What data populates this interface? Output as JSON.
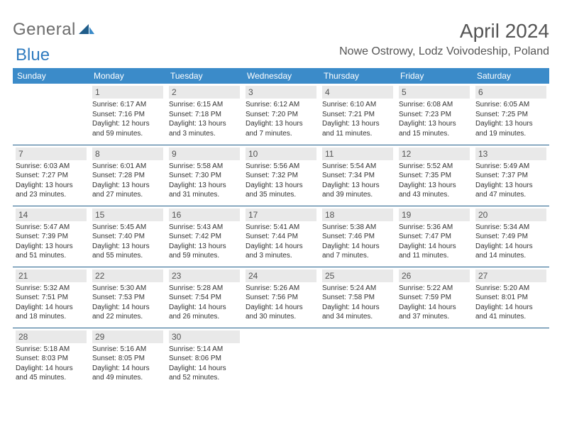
{
  "brand": {
    "part1": "General",
    "part2": "Blue"
  },
  "title": "April 2024",
  "location": "Nowe Ostrowy, Lodz Voivodeship, Poland",
  "colors": {
    "header_bg": "#3b8bc9",
    "header_text": "#ffffff",
    "divider": "#1f5d8a",
    "daynum_bg": "#e9e9e9",
    "text": "#333333",
    "brand_gray": "#6d6d6d",
    "brand_blue": "#2f7bbf"
  },
  "weekdays": [
    "Sunday",
    "Monday",
    "Tuesday",
    "Wednesday",
    "Thursday",
    "Friday",
    "Saturday"
  ],
  "weeks": [
    [
      {
        "n": "",
        "l1": "",
        "l2": "",
        "l3": "",
        "l4": ""
      },
      {
        "n": "1",
        "l1": "Sunrise: 6:17 AM",
        "l2": "Sunset: 7:16 PM",
        "l3": "Daylight: 12 hours",
        "l4": "and 59 minutes."
      },
      {
        "n": "2",
        "l1": "Sunrise: 6:15 AM",
        "l2": "Sunset: 7:18 PM",
        "l3": "Daylight: 13 hours",
        "l4": "and 3 minutes."
      },
      {
        "n": "3",
        "l1": "Sunrise: 6:12 AM",
        "l2": "Sunset: 7:20 PM",
        "l3": "Daylight: 13 hours",
        "l4": "and 7 minutes."
      },
      {
        "n": "4",
        "l1": "Sunrise: 6:10 AM",
        "l2": "Sunset: 7:21 PM",
        "l3": "Daylight: 13 hours",
        "l4": "and 11 minutes."
      },
      {
        "n": "5",
        "l1": "Sunrise: 6:08 AM",
        "l2": "Sunset: 7:23 PM",
        "l3": "Daylight: 13 hours",
        "l4": "and 15 minutes."
      },
      {
        "n": "6",
        "l1": "Sunrise: 6:05 AM",
        "l2": "Sunset: 7:25 PM",
        "l3": "Daylight: 13 hours",
        "l4": "and 19 minutes."
      }
    ],
    [
      {
        "n": "7",
        "l1": "Sunrise: 6:03 AM",
        "l2": "Sunset: 7:27 PM",
        "l3": "Daylight: 13 hours",
        "l4": "and 23 minutes."
      },
      {
        "n": "8",
        "l1": "Sunrise: 6:01 AM",
        "l2": "Sunset: 7:28 PM",
        "l3": "Daylight: 13 hours",
        "l4": "and 27 minutes."
      },
      {
        "n": "9",
        "l1": "Sunrise: 5:58 AM",
        "l2": "Sunset: 7:30 PM",
        "l3": "Daylight: 13 hours",
        "l4": "and 31 minutes."
      },
      {
        "n": "10",
        "l1": "Sunrise: 5:56 AM",
        "l2": "Sunset: 7:32 PM",
        "l3": "Daylight: 13 hours",
        "l4": "and 35 minutes."
      },
      {
        "n": "11",
        "l1": "Sunrise: 5:54 AM",
        "l2": "Sunset: 7:34 PM",
        "l3": "Daylight: 13 hours",
        "l4": "and 39 minutes."
      },
      {
        "n": "12",
        "l1": "Sunrise: 5:52 AM",
        "l2": "Sunset: 7:35 PM",
        "l3": "Daylight: 13 hours",
        "l4": "and 43 minutes."
      },
      {
        "n": "13",
        "l1": "Sunrise: 5:49 AM",
        "l2": "Sunset: 7:37 PM",
        "l3": "Daylight: 13 hours",
        "l4": "and 47 minutes."
      }
    ],
    [
      {
        "n": "14",
        "l1": "Sunrise: 5:47 AM",
        "l2": "Sunset: 7:39 PM",
        "l3": "Daylight: 13 hours",
        "l4": "and 51 minutes."
      },
      {
        "n": "15",
        "l1": "Sunrise: 5:45 AM",
        "l2": "Sunset: 7:40 PM",
        "l3": "Daylight: 13 hours",
        "l4": "and 55 minutes."
      },
      {
        "n": "16",
        "l1": "Sunrise: 5:43 AM",
        "l2": "Sunset: 7:42 PM",
        "l3": "Daylight: 13 hours",
        "l4": "and 59 minutes."
      },
      {
        "n": "17",
        "l1": "Sunrise: 5:41 AM",
        "l2": "Sunset: 7:44 PM",
        "l3": "Daylight: 14 hours",
        "l4": "and 3 minutes."
      },
      {
        "n": "18",
        "l1": "Sunrise: 5:38 AM",
        "l2": "Sunset: 7:46 PM",
        "l3": "Daylight: 14 hours",
        "l4": "and 7 minutes."
      },
      {
        "n": "19",
        "l1": "Sunrise: 5:36 AM",
        "l2": "Sunset: 7:47 PM",
        "l3": "Daylight: 14 hours",
        "l4": "and 11 minutes."
      },
      {
        "n": "20",
        "l1": "Sunrise: 5:34 AM",
        "l2": "Sunset: 7:49 PM",
        "l3": "Daylight: 14 hours",
        "l4": "and 14 minutes."
      }
    ],
    [
      {
        "n": "21",
        "l1": "Sunrise: 5:32 AM",
        "l2": "Sunset: 7:51 PM",
        "l3": "Daylight: 14 hours",
        "l4": "and 18 minutes."
      },
      {
        "n": "22",
        "l1": "Sunrise: 5:30 AM",
        "l2": "Sunset: 7:53 PM",
        "l3": "Daylight: 14 hours",
        "l4": "and 22 minutes."
      },
      {
        "n": "23",
        "l1": "Sunrise: 5:28 AM",
        "l2": "Sunset: 7:54 PM",
        "l3": "Daylight: 14 hours",
        "l4": "and 26 minutes."
      },
      {
        "n": "24",
        "l1": "Sunrise: 5:26 AM",
        "l2": "Sunset: 7:56 PM",
        "l3": "Daylight: 14 hours",
        "l4": "and 30 minutes."
      },
      {
        "n": "25",
        "l1": "Sunrise: 5:24 AM",
        "l2": "Sunset: 7:58 PM",
        "l3": "Daylight: 14 hours",
        "l4": "and 34 minutes."
      },
      {
        "n": "26",
        "l1": "Sunrise: 5:22 AM",
        "l2": "Sunset: 7:59 PM",
        "l3": "Daylight: 14 hours",
        "l4": "and 37 minutes."
      },
      {
        "n": "27",
        "l1": "Sunrise: 5:20 AM",
        "l2": "Sunset: 8:01 PM",
        "l3": "Daylight: 14 hours",
        "l4": "and 41 minutes."
      }
    ],
    [
      {
        "n": "28",
        "l1": "Sunrise: 5:18 AM",
        "l2": "Sunset: 8:03 PM",
        "l3": "Daylight: 14 hours",
        "l4": "and 45 minutes."
      },
      {
        "n": "29",
        "l1": "Sunrise: 5:16 AM",
        "l2": "Sunset: 8:05 PM",
        "l3": "Daylight: 14 hours",
        "l4": "and 49 minutes."
      },
      {
        "n": "30",
        "l1": "Sunrise: 5:14 AM",
        "l2": "Sunset: 8:06 PM",
        "l3": "Daylight: 14 hours",
        "l4": "and 52 minutes."
      },
      {
        "n": "",
        "l1": "",
        "l2": "",
        "l3": "",
        "l4": ""
      },
      {
        "n": "",
        "l1": "",
        "l2": "",
        "l3": "",
        "l4": ""
      },
      {
        "n": "",
        "l1": "",
        "l2": "",
        "l3": "",
        "l4": ""
      },
      {
        "n": "",
        "l1": "",
        "l2": "",
        "l3": "",
        "l4": ""
      }
    ]
  ]
}
